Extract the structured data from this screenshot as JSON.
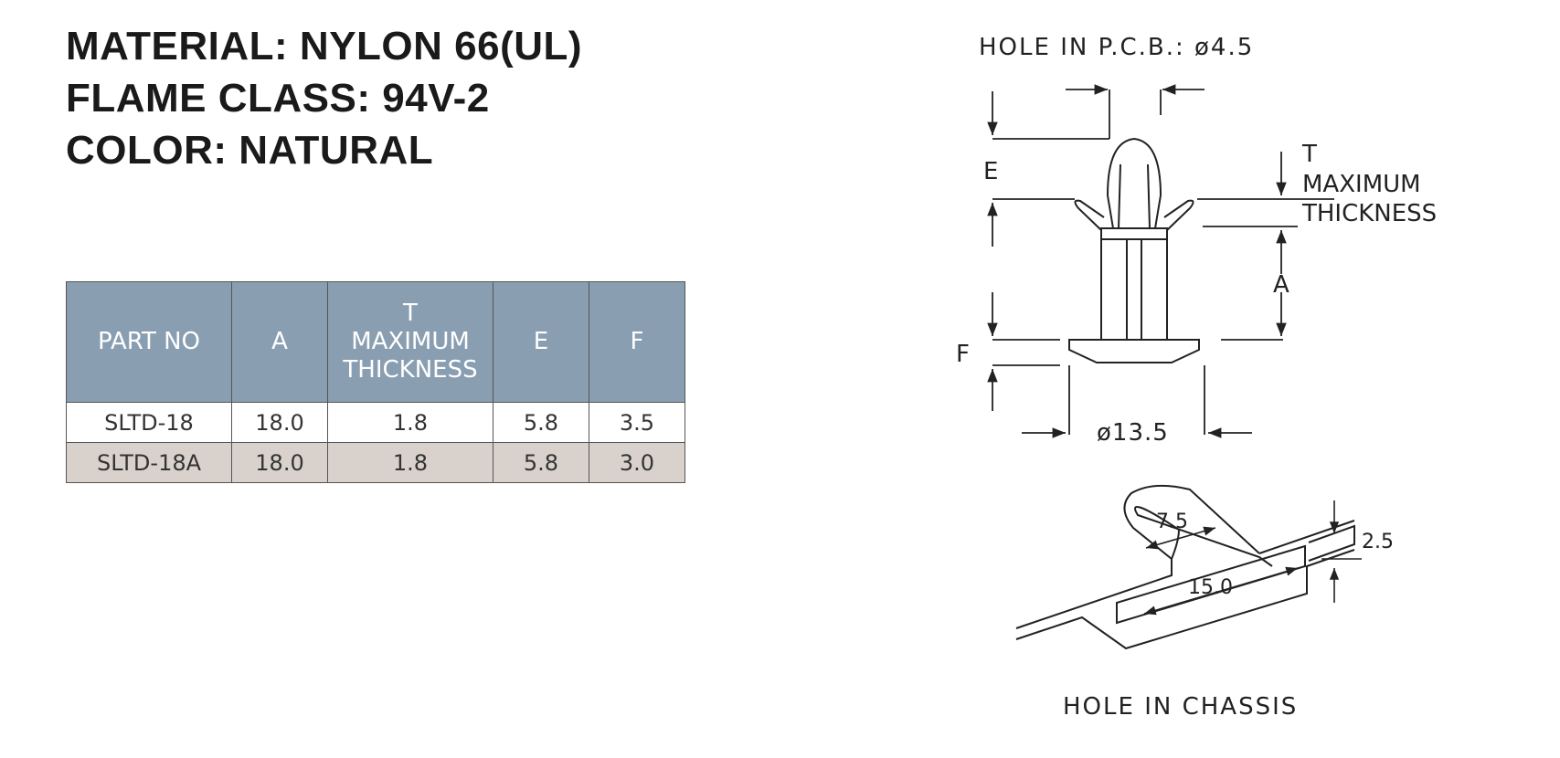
{
  "specs": {
    "material": "MATERIAL: NYLON 66(UL)",
    "flame_class": "FLAME CLASS: 94V-2",
    "color": "COLOR: NATURAL"
  },
  "table": {
    "headers": {
      "part_no": "PART NO",
      "a": "A",
      "t_line1": "T",
      "t_line2": "MAXIMUM",
      "t_line3": "THICKNESS",
      "e": "E",
      "f": "F"
    },
    "rows": [
      {
        "part_no": "SLTD-18",
        "a": "18.0",
        "t": "1.8",
        "e": "5.8",
        "f": "3.5"
      },
      {
        "part_no": "SLTD-18A",
        "a": "18.0",
        "t": "1.8",
        "e": "5.8",
        "f": "3.0"
      }
    ]
  },
  "drawing": {
    "hole_pcb": "HOLE IN P.C.B.: ø4.5",
    "label_e": "E",
    "label_t": "T",
    "label_max": "MAXIMUM",
    "label_thick": "THICKNESS",
    "label_a": "A",
    "label_f": "F",
    "dia_base": "ø13.5",
    "dim_75": "7.5",
    "dim_150": "15.0",
    "dim_25": "2.5",
    "hole_chassis": "HOLE IN CHASSIS"
  },
  "colors": {
    "header_bg": "#8a9eb2",
    "alt_row_bg": "#d9d2cc",
    "line": "#222222"
  }
}
